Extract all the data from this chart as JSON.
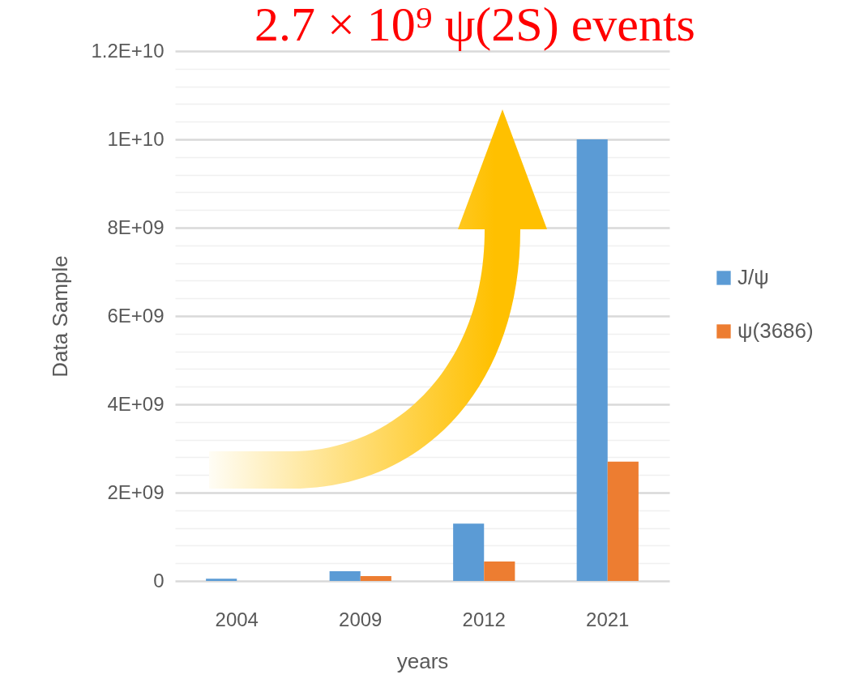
{
  "chart_data": {
    "type": "bar",
    "title": "2.7 × 10⁹ ψ(2S) events",
    "xlabel": "years",
    "ylabel": "Data Sample",
    "categories": [
      "2004",
      "2009",
      "2012",
      "2021"
    ],
    "series": [
      {
        "name": "J/ψ",
        "color": "#5b9bd5",
        "values": [
          50000000,
          220000000,
          1300000000,
          10000000000
        ]
      },
      {
        "name": "ψ(3686)",
        "color": "#ed7d31",
        "values": [
          0,
          110000000,
          440000000,
          2700000000
        ]
      }
    ],
    "ylim": [
      0,
      12000000000
    ],
    "yticks": [
      0,
      {
        "value": 400000000,
        "label": null
      },
      {
        "value": 800000000,
        "label": null
      },
      {
        "value": 1200000000,
        "label": null
      },
      {
        "value": 1600000000,
        "label": null
      },
      {
        "value": 2000000000,
        "label": "2E+09"
      },
      {
        "value": 2400000000,
        "label": null
      },
      {
        "value": 2800000000,
        "label": null
      },
      {
        "value": 3200000000,
        "label": null
      },
      {
        "value": 3600000000,
        "label": null
      },
      {
        "value": 4000000000,
        "label": "4E+09"
      },
      {
        "value": 4400000000,
        "label": null
      },
      {
        "value": 4800000000,
        "label": null
      },
      {
        "value": 5200000000,
        "label": null
      },
      {
        "value": 5600000000,
        "label": null
      },
      {
        "value": 6000000000,
        "label": "6E+09"
      },
      {
        "value": 6400000000,
        "label": null
      },
      {
        "value": 6800000000,
        "label": null
      },
      {
        "value": 7200000000,
        "label": null
      },
      {
        "value": 7600000000,
        "label": null
      },
      {
        "value": 8000000000,
        "label": "8E+09"
      },
      {
        "value": 8400000000,
        "label": null
      },
      {
        "value": 8800000000,
        "label": null
      },
      {
        "value": 9200000000,
        "label": null
      },
      {
        "value": 9600000000,
        "label": null
      },
      {
        "value": 10000000000,
        "label": "1E+10"
      },
      {
        "value": 10400000000,
        "label": null
      },
      {
        "value": 10800000000,
        "label": null
      },
      {
        "value": 11200000000,
        "label": null
      },
      {
        "value": 11600000000,
        "label": null
      },
      {
        "value": 12000000000,
        "label": "1.2E+10"
      }
    ],
    "grid": "y",
    "legend": "right"
  }
}
